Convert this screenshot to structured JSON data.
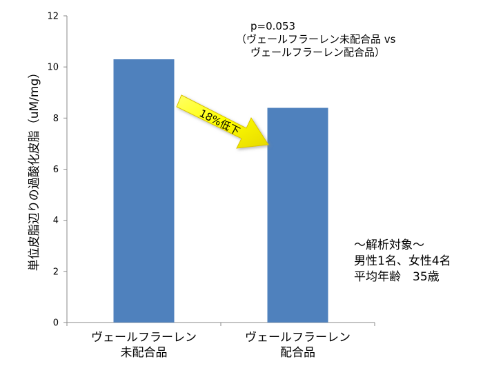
{
  "chart_data": {
    "type": "bar",
    "categories": [
      [
        "ヴェールフラーレン",
        "未配合品"
      ],
      [
        "ヴェールフラーレン",
        "配合品"
      ]
    ],
    "values": [
      10.3,
      8.4
    ],
    "ylabel": "単位皮脂辺りの過酸化皮脂（uM/mg）",
    "ylim": [
      0,
      12
    ],
    "yticks": [
      "0",
      "2",
      "4",
      "6",
      "8",
      "10",
      "12"
    ],
    "bar_color": "#4f81bd",
    "grid": false,
    "annotations": {
      "p_value": "p=0.053",
      "comparison_line1": "（ヴェールフラーレン未配合品 vs",
      "comparison_line2": "ヴェールフラーレン配合品）",
      "arrow_label": "18%低下",
      "arrow_color": "#ffff00"
    }
  },
  "subject_info": {
    "line1": "～解析対象～",
    "line2": "男性1名、女性4名",
    "line3": "平均年齢　35歳"
  }
}
